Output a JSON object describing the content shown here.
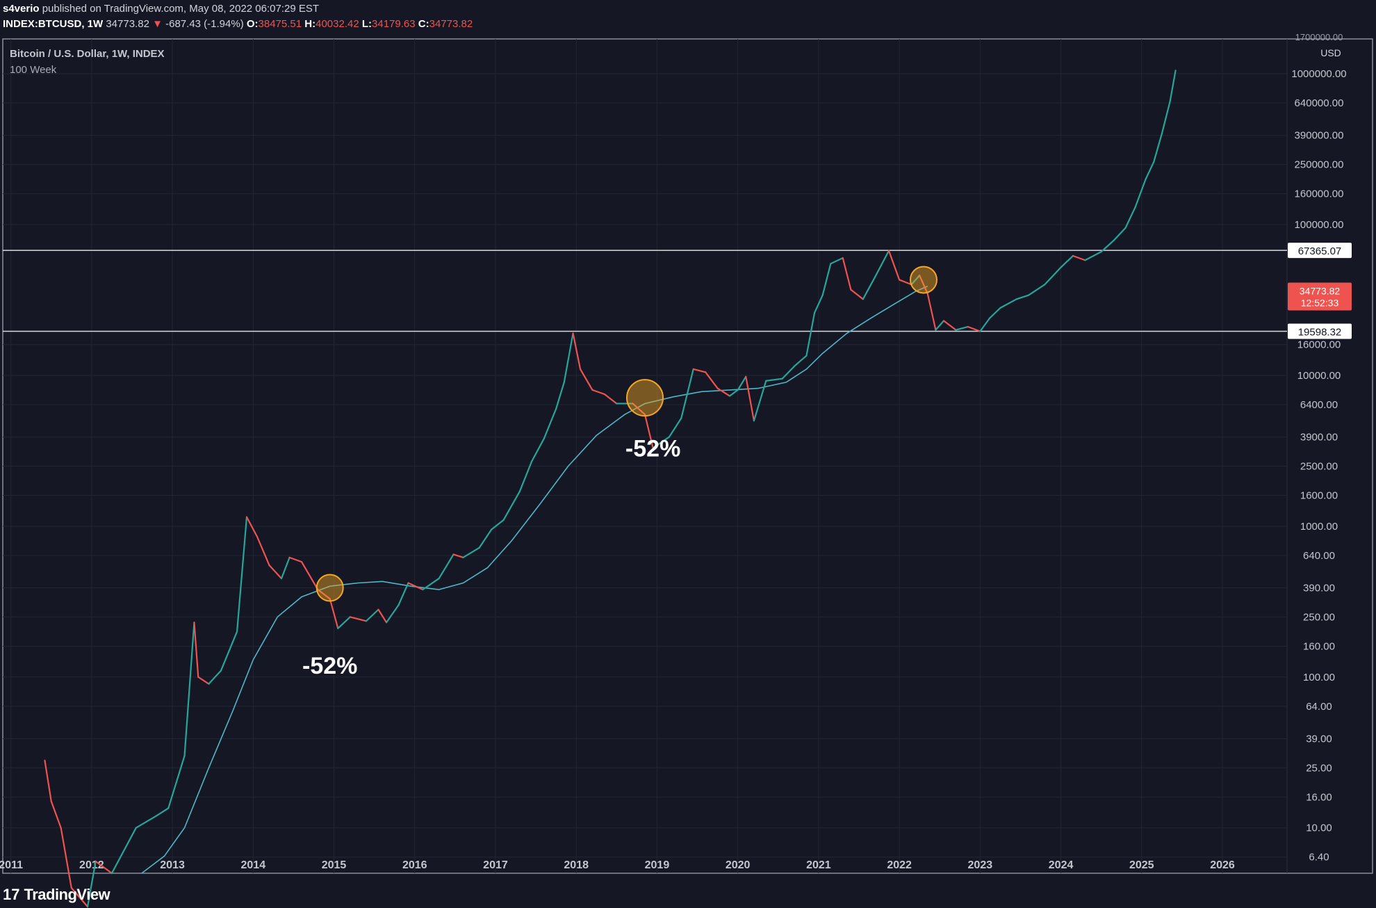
{
  "header": {
    "publisher": "s4verio",
    "published_text": "published on TradingView.com, May 08, 2022 06:07:29 EST",
    "symbol": "INDEX:BTCUSD, 1W",
    "last": "34773.82",
    "change": "-687.43 (-1.94%)",
    "o_label": "O:",
    "o": "38475.51",
    "h_label": "H:",
    "h": "40032.42",
    "l_label": "L:",
    "l": "34179.63",
    "c_label": "C:",
    "c": "34773.82"
  },
  "footer": {
    "logo_mark": "17",
    "logo_text": "TradingView"
  },
  "colors": {
    "background": "#151824",
    "up": "#26a69a",
    "down": "#ef5350",
    "ma_line": "#4fb6c6",
    "circle": "#f5a623",
    "price_badge": "#ef5350"
  },
  "chart_data": {
    "type": "line",
    "title": "Bitcoin / U.S. Dollar, 1W, INDEX",
    "subtitle": "100 Week",
    "yscale": "log",
    "ylabel": "USD",
    "ylim": [
      5,
      1700000
    ],
    "xlim": [
      2010.9,
      2026.8
    ],
    "grid": true,
    "x_ticks": [
      "2011",
      "2012",
      "2013",
      "2014",
      "2015",
      "2016",
      "2017",
      "2018",
      "2019",
      "2020",
      "2021",
      "2022",
      "2023",
      "2024",
      "2025",
      "2026"
    ],
    "y_ticks": [
      {
        "v": 1000000,
        "label": "1000000.00"
      },
      {
        "v": 640000,
        "label": "640000.00"
      },
      {
        "v": 390000,
        "label": "390000.00"
      },
      {
        "v": 250000,
        "label": "250000.00"
      },
      {
        "v": 160000,
        "label": "160000.00"
      },
      {
        "v": 100000,
        "label": "100000.00"
      },
      {
        "v": 16000,
        "label": "16000.00"
      },
      {
        "v": 10000,
        "label": "10000.00"
      },
      {
        "v": 6400,
        "label": "6400.00"
      },
      {
        "v": 3900,
        "label": "3900.00"
      },
      {
        "v": 2500,
        "label": "2500.00"
      },
      {
        "v": 1600,
        "label": "1600.00"
      },
      {
        "v": 1000,
        "label": "1000.00"
      },
      {
        "v": 640,
        "label": "640.00"
      },
      {
        "v": 390,
        "label": "390.00"
      },
      {
        "v": 250,
        "label": "250.00"
      },
      {
        "v": 160,
        "label": "160.00"
      },
      {
        "v": 100,
        "label": "100.00"
      },
      {
        "v": 64,
        "label": "64.00"
      },
      {
        "v": 39,
        "label": "39.00"
      },
      {
        "v": 25,
        "label": "25.00"
      },
      {
        "v": 16,
        "label": "16.00"
      },
      {
        "v": 10,
        "label": "10.00"
      },
      {
        "v": 6.4,
        "label": "6.40"
      }
    ],
    "top_partial_label": "1700000.00",
    "horizontal_lines": [
      {
        "value": 67365.07,
        "label": "67365.07"
      },
      {
        "value": 19598.32,
        "label": "19598.32"
      }
    ],
    "last_price": {
      "value": 34773.82,
      "label": "34773.82",
      "countdown": "12:52:33"
    },
    "series": [
      {
        "name": "BTCUSD",
        "kind": "price",
        "points": [
          [
            2011.42,
            28
          ],
          [
            2011.5,
            15
          ],
          [
            2011.62,
            10
          ],
          [
            2011.75,
            4
          ],
          [
            2011.95,
            3
          ],
          [
            2012.05,
            6
          ],
          [
            2012.25,
            5
          ],
          [
            2012.55,
            10
          ],
          [
            2012.8,
            12
          ],
          [
            2012.95,
            13.5
          ],
          [
            2013.15,
            30
          ],
          [
            2013.27,
            230
          ],
          [
            2013.32,
            100
          ],
          [
            2013.45,
            90
          ],
          [
            2013.6,
            110
          ],
          [
            2013.8,
            200
          ],
          [
            2013.92,
            1150
          ],
          [
            2014.05,
            850
          ],
          [
            2014.2,
            550
          ],
          [
            2014.35,
            450
          ],
          [
            2014.45,
            620
          ],
          [
            2014.6,
            580
          ],
          [
            2014.8,
            380
          ],
          [
            2014.95,
            330
          ],
          [
            2015.05,
            210
          ],
          [
            2015.2,
            250
          ],
          [
            2015.4,
            235
          ],
          [
            2015.55,
            280
          ],
          [
            2015.65,
            230
          ],
          [
            2015.8,
            300
          ],
          [
            2015.92,
            420
          ],
          [
            2016.1,
            380
          ],
          [
            2016.3,
            450
          ],
          [
            2016.48,
            650
          ],
          [
            2016.6,
            620
          ],
          [
            2016.8,
            720
          ],
          [
            2016.95,
            950
          ],
          [
            2017.1,
            1100
          ],
          [
            2017.3,
            1700
          ],
          [
            2017.45,
            2700
          ],
          [
            2017.6,
            3800
          ],
          [
            2017.75,
            6000
          ],
          [
            2017.85,
            9000
          ],
          [
            2017.96,
            19000
          ],
          [
            2018.05,
            11000
          ],
          [
            2018.2,
            8000
          ],
          [
            2018.35,
            7500
          ],
          [
            2018.5,
            6500
          ],
          [
            2018.7,
            6500
          ],
          [
            2018.85,
            5500
          ],
          [
            2018.95,
            3300
          ],
          [
            2019.15,
            3900
          ],
          [
            2019.3,
            5200
          ],
          [
            2019.45,
            11000
          ],
          [
            2019.6,
            10500
          ],
          [
            2019.75,
            8200
          ],
          [
            2019.9,
            7300
          ],
          [
            2020.0,
            8000
          ],
          [
            2020.1,
            9800
          ],
          [
            2020.2,
            5000
          ],
          [
            2020.35,
            9200
          ],
          [
            2020.55,
            9500
          ],
          [
            2020.7,
            11500
          ],
          [
            2020.85,
            13500
          ],
          [
            2020.95,
            26000
          ],
          [
            2021.05,
            34000
          ],
          [
            2021.15,
            55000
          ],
          [
            2021.3,
            60000
          ],
          [
            2021.4,
            37000
          ],
          [
            2021.55,
            32000
          ],
          [
            2021.7,
            45000
          ],
          [
            2021.87,
            67000
          ],
          [
            2022.0,
            43000
          ],
          [
            2022.15,
            40000
          ],
          [
            2022.25,
            46000
          ],
          [
            2022.35,
            34773.82
          ],
          [
            2022.45,
            20000
          ],
          [
            2022.55,
            23000
          ],
          [
            2022.7,
            20000
          ],
          [
            2022.85,
            21000
          ],
          [
            2023.0,
            19600
          ],
          [
            2023.12,
            24000
          ],
          [
            2023.25,
            28000
          ],
          [
            2023.45,
            32000
          ],
          [
            2023.6,
            34000
          ],
          [
            2023.8,
            40000
          ],
          [
            2024.0,
            52000
          ],
          [
            2024.15,
            62000
          ],
          [
            2024.3,
            58000
          ],
          [
            2024.5,
            66000
          ],
          [
            2024.65,
            78000
          ],
          [
            2024.8,
            95000
          ],
          [
            2024.92,
            130000
          ],
          [
            2025.05,
            200000
          ],
          [
            2025.15,
            260000
          ],
          [
            2025.25,
            400000
          ],
          [
            2025.35,
            650000
          ],
          [
            2025.42,
            1050000
          ]
        ]
      },
      {
        "name": "100 Week",
        "kind": "ma",
        "points": [
          [
            2012.62,
            5
          ],
          [
            2012.9,
            6.5
          ],
          [
            2013.15,
            10
          ],
          [
            2013.45,
            25
          ],
          [
            2013.75,
            60
          ],
          [
            2014.0,
            130
          ],
          [
            2014.3,
            250
          ],
          [
            2014.6,
            340
          ],
          [
            2014.95,
            400
          ],
          [
            2015.3,
            420
          ],
          [
            2015.6,
            430
          ],
          [
            2015.95,
            400
          ],
          [
            2016.3,
            380
          ],
          [
            2016.6,
            420
          ],
          [
            2016.9,
            530
          ],
          [
            2017.2,
            800
          ],
          [
            2017.55,
            1400
          ],
          [
            2017.9,
            2500
          ],
          [
            2018.25,
            4000
          ],
          [
            2018.6,
            5500
          ],
          [
            2018.85,
            6500
          ],
          [
            2019.2,
            7200
          ],
          [
            2019.55,
            7800
          ],
          [
            2019.9,
            8000
          ],
          [
            2020.25,
            8200
          ],
          [
            2020.6,
            9000
          ],
          [
            2020.85,
            11000
          ],
          [
            2021.05,
            14000
          ],
          [
            2021.35,
            19000
          ],
          [
            2021.65,
            24000
          ],
          [
            2021.95,
            30000
          ],
          [
            2022.2,
            36000
          ],
          [
            2022.35,
            39000
          ]
        ]
      }
    ],
    "annotations": [
      {
        "text": "-52%",
        "x": 2014.95,
        "y": 105
      },
      {
        "text": "-52%",
        "x": 2018.95,
        "y": 2900
      }
    ],
    "circles": [
      {
        "x": 2014.95,
        "y": 390
      },
      {
        "x": 2018.85,
        "y": 7100
      },
      {
        "x": 2022.3,
        "y": 43000
      }
    ]
  }
}
